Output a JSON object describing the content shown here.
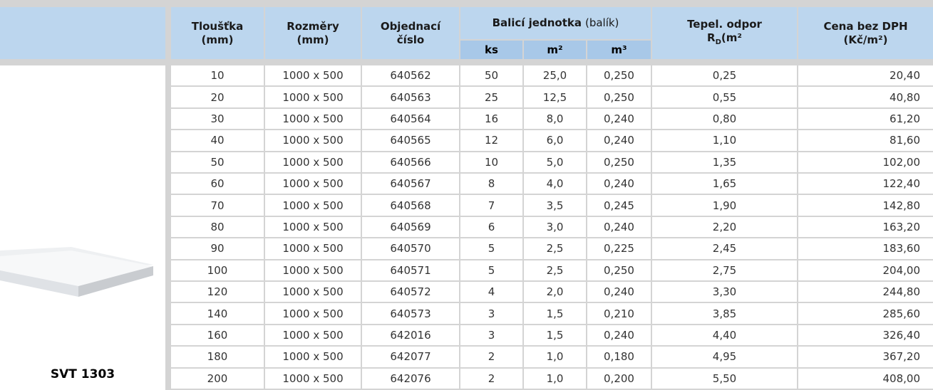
{
  "header": {
    "thickness": [
      "Tloušťka",
      "(mm)"
    ],
    "dimensions": [
      "Rozměry",
      "(mm)"
    ],
    "order_number": [
      "Objednací",
      "číslo"
    ],
    "package": {
      "title": "Balicí jednotka",
      "note": "(balík)",
      "columns": [
        "ks",
        "m²",
        "m³"
      ]
    },
    "resistance": {
      "line1": "Tepel. odpor",
      "line2": [
        "R",
        "D",
        "(m²",
        "",
        "",
        "",
        "",
        ""
      ]
    },
    "price": [
      "Cena bez DPH",
      "(Kč/m²)"
    ]
  },
  "product": "SVT 1303",
  "table": {
    "rows": [
      [
        "10",
        "1000 x 500",
        "640562",
        "50",
        "25,0",
        "0,250",
        "0,25",
        "20,40"
      ],
      [
        "20",
        "1000 x 500",
        "640563",
        "25",
        "12,5",
        "0,250",
        "0,55",
        "40,80"
      ],
      [
        "30",
        "1000 x 500",
        "640564",
        "16",
        "8,0",
        "0,240",
        "0,80",
        "61,20"
      ],
      [
        "40",
        "1000 x 500",
        "640565",
        "12",
        "6,0",
        "0,240",
        "1,10",
        "81,60"
      ],
      [
        "50",
        "1000 x 500",
        "640566",
        "10",
        "5,0",
        "0,250",
        "1,35",
        "102,00"
      ],
      [
        "60",
        "1000 x 500",
        "640567",
        "8",
        "4,0",
        "0,240",
        "1,65",
        "122,40"
      ],
      [
        "70",
        "1000 x 500",
        "640568",
        "7",
        "3,5",
        "0,245",
        "1,90",
        "142,80"
      ],
      [
        "80",
        "1000 x 500",
        "640569",
        "6",
        "3,0",
        "0,240",
        "2,20",
        "163,20"
      ],
      [
        "90",
        "1000 x 500",
        "640570",
        "5",
        "2,5",
        "0,225",
        "2,45",
        "183,60"
      ],
      [
        "100",
        "1000 x 500",
        "640571",
        "5",
        "2,5",
        "0,250",
        "2,75",
        "204,00"
      ],
      [
        "120",
        "1000 x 500",
        "640572",
        "4",
        "2,0",
        "0,240",
        "3,30",
        "244,80"
      ],
      [
        "140",
        "1000 x 500",
        "640573",
        "3",
        "1,5",
        "0,210",
        "3,85",
        "285,60"
      ],
      [
        "160",
        "1000 x 500",
        "642016",
        "3",
        "1,5",
        "0,240",
        "4,40",
        "326,40"
      ],
      [
        "180",
        "1000 x 500",
        "642077",
        "2",
        "1,0",
        "0,180",
        "4,95",
        "367,20"
      ],
      [
        "200",
        "1000 x 500",
        "642076",
        "2",
        "1,0",
        "0,200",
        "5,50",
        "408,00"
      ]
    ]
  }
}
